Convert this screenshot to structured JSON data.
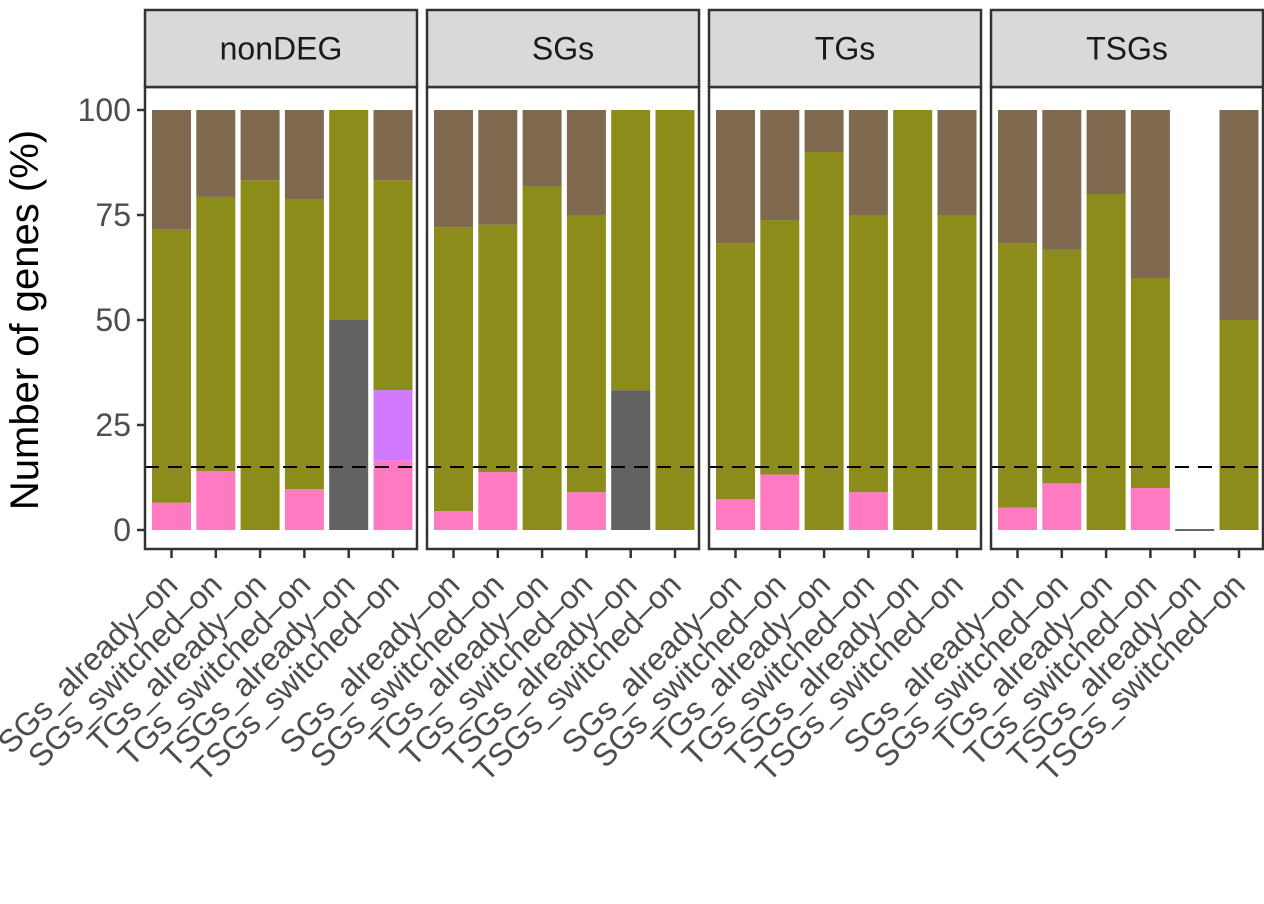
{
  "chart_data": {
    "type": "bar",
    "stacked": true,
    "ylabel": "Number of genes (%)",
    "xlabel": "",
    "ylim": [
      0,
      100
    ],
    "yticks": [
      "0",
      "25",
      "50",
      "75",
      "100"
    ],
    "reference_line": {
      "y": 15,
      "style": "dashed"
    },
    "grid": false,
    "legend": "none",
    "categories": [
      "SGs_already–on",
      "SGs_switched–on",
      "TGs_already–on",
      "TGs_switched–on",
      "TSGs_already–on",
      "TSGs_switched–on"
    ],
    "segment_colors": [
      "#ff7ac0",
      "#7f7f7f",
      "#d27aff",
      "#626262",
      "#8c8c1a",
      "#7f6a50"
    ],
    "panels": [
      {
        "title": "nonDEG",
        "bars": [
          [
            6.5,
            0,
            0,
            0,
            65,
            28.5
          ],
          [
            14,
            0,
            0,
            0,
            65.3,
            20.7
          ],
          [
            0,
            0,
            0,
            0,
            83.3,
            16.7
          ],
          [
            9.7,
            0,
            0,
            0,
            69.1,
            21.2
          ],
          [
            0,
            0,
            0,
            50,
            50,
            0
          ],
          [
            16.5,
            0,
            16.8,
            0,
            50,
            16.7
          ]
        ]
      },
      {
        "title": "SGs",
        "bars": [
          [
            4.5,
            0,
            0,
            0,
            67.6,
            27.9
          ],
          [
            13.8,
            0,
            0,
            0,
            58.9,
            27.3
          ],
          [
            0,
            0,
            0,
            0,
            81.8,
            18.2
          ],
          [
            9,
            0,
            0,
            0,
            66,
            25
          ],
          [
            0,
            0,
            0,
            33.3,
            66.7,
            0
          ],
          [
            0,
            0,
            0,
            0,
            100,
            0
          ]
        ]
      },
      {
        "title": "TGs",
        "bars": [
          [
            7.3,
            0,
            0,
            0,
            61,
            31.7
          ],
          [
            13.2,
            0,
            0,
            0,
            60.6,
            26.2
          ],
          [
            0,
            0,
            0,
            0,
            90,
            10
          ],
          [
            9,
            0,
            0,
            0,
            66,
            25
          ],
          [
            0,
            0,
            0,
            0,
            100,
            0
          ],
          [
            0,
            0,
            0,
            0,
            75,
            25
          ]
        ]
      },
      {
        "title": "TSGs",
        "bars": [
          [
            5.3,
            0,
            0,
            0,
            63,
            31.7
          ],
          [
            11.1,
            0,
            0,
            0,
            55.6,
            33.3
          ],
          [
            0,
            0,
            0,
            0,
            80,
            20
          ],
          [
            10,
            0,
            0,
            0,
            50,
            40
          ],
          [
            0,
            0,
            0,
            0,
            0,
            0
          ],
          [
            0,
            0,
            0,
            0,
            50,
            50
          ]
        ]
      }
    ]
  }
}
